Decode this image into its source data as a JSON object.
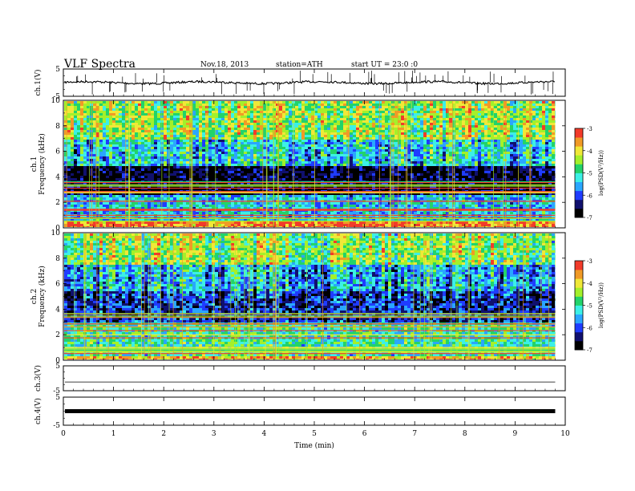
{
  "header": {
    "title": "VLF Spectra",
    "date": "Nov.18, 2013",
    "station": "station=ATH",
    "start": "start UT =  23:0 :0"
  },
  "chart_data": [
    {
      "type": "line",
      "panel": "ch1-waveform",
      "ylabel": "ch.1(V)",
      "ylim": [
        -5,
        5
      ],
      "y_ticks": [
        "5",
        "-5"
      ],
      "x_range_min": [
        0,
        9.8
      ],
      "baseline_v": 0.0,
      "series": [
        {
          "values": "noisy trace near 0 V with impulsive spikes"
        }
      ]
    },
    {
      "type": "heatmap",
      "panel": "ch1-spectrogram",
      "ylabel": "ch.1\nFrequency (kHz)",
      "ylim": [
        0,
        10
      ],
      "y_ticks": [
        "0",
        "2",
        "4",
        "6",
        "8",
        "10"
      ],
      "colorbar": {
        "label": "log(PSD(V²/Hz))",
        "range": [
          -7,
          -3
        ],
        "ticks": [
          "-3",
          "-4",
          "-5",
          "-6",
          "-7"
        ]
      },
      "bands_khz": [
        {
          "from": 0,
          "to": 0.6,
          "log_psd": -3.5
        },
        {
          "from": 0.6,
          "to": 2.6,
          "log_psd": -5.4
        },
        {
          "from": 2.6,
          "to": 5.0,
          "log_psd": -6.7
        },
        {
          "from": 5.0,
          "to": 7.0,
          "log_psd": -5.4
        },
        {
          "from": 7.0,
          "to": 10,
          "log_psd": -4.5
        }
      ]
    },
    {
      "type": "heatmap",
      "panel": "ch2-spectrogram",
      "ylabel": "ch.2\nFrequency (kHz)",
      "ylim": [
        0,
        10
      ],
      "y_ticks": [
        "0",
        "2",
        "4",
        "6",
        "8",
        "10"
      ],
      "colorbar": {
        "label": "log(PSD(V²/Hz))",
        "range": [
          -7,
          -3
        ],
        "ticks": [
          "-3",
          "-4",
          "-5",
          "-6",
          "-7"
        ]
      },
      "bands_khz": [
        {
          "from": 0,
          "to": 0.5,
          "log_psd": -3.8
        },
        {
          "from": 0.5,
          "to": 3.0,
          "log_psd": -5.0
        },
        {
          "from": 3.0,
          "to": 5.5,
          "log_psd": -6.2
        },
        {
          "from": 5.5,
          "to": 7.5,
          "log_psd": -5.6
        },
        {
          "from": 7.5,
          "to": 10,
          "log_psd": -4.6
        }
      ]
    },
    {
      "type": "line",
      "panel": "ch3-waveform",
      "ylabel": "ch.3(V)",
      "ylim": [
        -5,
        5
      ],
      "y_ticks": [
        "5",
        "-5"
      ],
      "baseline_v": -1.5
    },
    {
      "type": "line",
      "panel": "ch4-waveform",
      "ylabel": "ch.4(V)",
      "ylim": [
        -5,
        5
      ],
      "y_ticks": [
        "5",
        "-5"
      ],
      "baseline_v": 0.0
    }
  ],
  "x_axis": {
    "label": "Time (min)",
    "range": [
      0,
      10
    ],
    "ticks": [
      "0",
      "1",
      "2",
      "3",
      "4",
      "5",
      "6",
      "7",
      "8",
      "9",
      "10"
    ],
    "data_end_min": 9.8
  },
  "palette": [
    "#000000",
    "#10106e",
    "#1f3cff",
    "#2aa6ff",
    "#3cf0e6",
    "#22d36a",
    "#a4f02a",
    "#f0e838",
    "#f09a26",
    "#f23b2a",
    "#ffe0e0"
  ]
}
